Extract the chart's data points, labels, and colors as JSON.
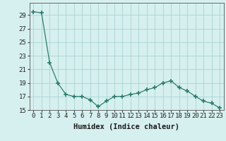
{
  "x": [
    0,
    1,
    2,
    3,
    4,
    5,
    6,
    7,
    8,
    9,
    10,
    11,
    12,
    13,
    14,
    15,
    16,
    17,
    18,
    19,
    20,
    21,
    22,
    23
  ],
  "y": [
    29.5,
    29.3,
    22.0,
    19.0,
    17.3,
    17.0,
    17.0,
    16.5,
    15.5,
    16.3,
    17.0,
    17.0,
    17.3,
    17.5,
    18.0,
    18.3,
    19.0,
    19.3,
    18.3,
    17.8,
    17.0,
    16.3,
    16.0,
    15.3
  ],
  "xlabel": "Humidex (Indice chaleur)",
  "ylim": [
    15,
    30
  ],
  "xlim_min": -0.5,
  "xlim_max": 23.5,
  "yticks": [
    15,
    17,
    19,
    21,
    23,
    25,
    27,
    29
  ],
  "xticks": [
    0,
    1,
    2,
    3,
    4,
    5,
    6,
    7,
    8,
    9,
    10,
    11,
    12,
    13,
    14,
    15,
    16,
    17,
    18,
    19,
    20,
    21,
    22,
    23
  ],
  "line_color": "#2d7b6b",
  "marker_color": "#2d7b6b",
  "bg_color": "#d6f0ef",
  "grid_color": "#a8d4d0",
  "tick_label_fontsize": 6.5,
  "xlabel_fontsize": 7.5
}
